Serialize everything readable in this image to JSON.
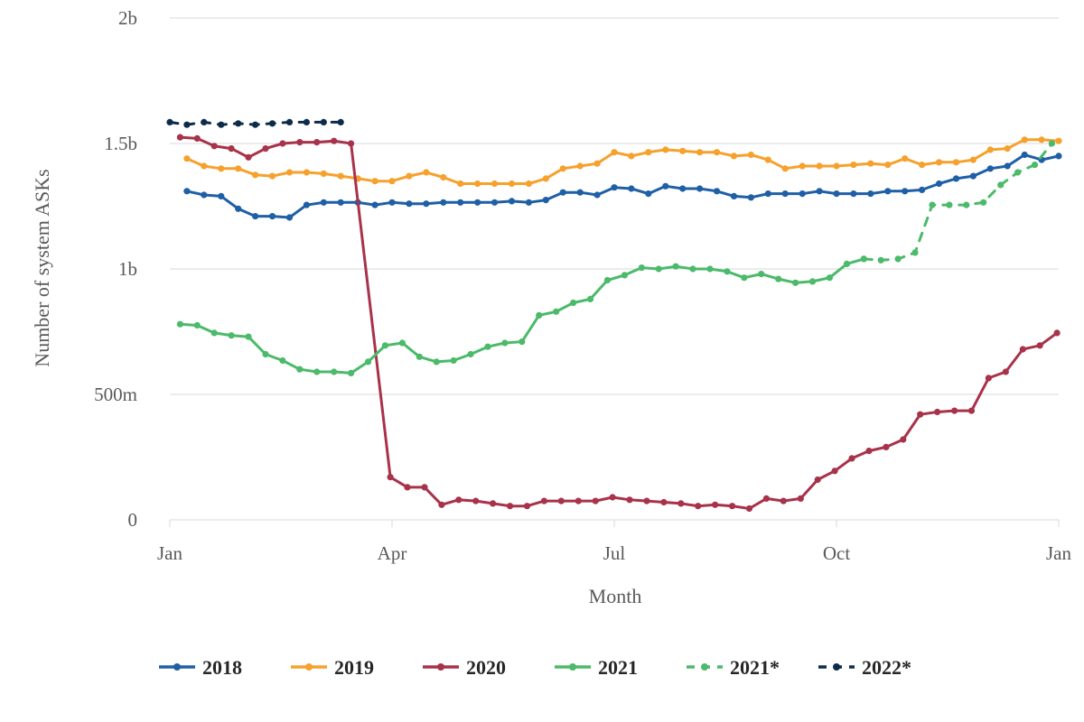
{
  "chart_data": {
    "type": "line",
    "xlabel": "Month",
    "ylabel": "Number of system ASKs",
    "ylim": [
      0,
      2000000000
    ],
    "xlim": [
      0,
      52
    ],
    "grid": "horizontal",
    "legend_position": "bottom",
    "y_ticks": [
      {
        "value": 0,
        "label": "0"
      },
      {
        "value": 500000000,
        "label": "500m"
      },
      {
        "value": 1000000000,
        "label": "1b"
      },
      {
        "value": 1500000000,
        "label": "1.5b"
      },
      {
        "value": 2000000000,
        "label": "2b"
      }
    ],
    "x_ticks": [
      {
        "value": 0,
        "label": "Jan"
      },
      {
        "value": 13,
        "label": "Apr"
      },
      {
        "value": 26,
        "label": "Jul"
      },
      {
        "value": 39,
        "label": "Oct"
      },
      {
        "value": 52,
        "label": "Jan"
      }
    ],
    "series": [
      {
        "name": "2018",
        "color": "#1f5fa6",
        "dashed": false,
        "points": [
          [
            1,
            1310
          ],
          [
            2,
            1295
          ],
          [
            3,
            1290
          ],
          [
            4,
            1240
          ],
          [
            5,
            1210
          ],
          [
            6,
            1210
          ],
          [
            7,
            1205
          ],
          [
            8,
            1255
          ],
          [
            9,
            1265
          ],
          [
            10,
            1265
          ],
          [
            11,
            1265
          ],
          [
            12,
            1255
          ],
          [
            13,
            1265
          ],
          [
            14,
            1260
          ],
          [
            15,
            1260
          ],
          [
            16,
            1265
          ],
          [
            17,
            1265
          ],
          [
            18,
            1265
          ],
          [
            19,
            1265
          ],
          [
            20,
            1270
          ],
          [
            21,
            1265
          ],
          [
            22,
            1275
          ],
          [
            23,
            1305
          ],
          [
            24,
            1305
          ],
          [
            25,
            1295
          ],
          [
            26,
            1325
          ],
          [
            27,
            1320
          ],
          [
            28,
            1300
          ],
          [
            29,
            1330
          ],
          [
            30,
            1320
          ],
          [
            31,
            1320
          ],
          [
            32,
            1310
          ],
          [
            33,
            1290
          ],
          [
            34,
            1285
          ],
          [
            35,
            1300
          ],
          [
            36,
            1300
          ],
          [
            37,
            1300
          ],
          [
            38,
            1310
          ],
          [
            39,
            1300
          ],
          [
            40,
            1300
          ],
          [
            41,
            1300
          ],
          [
            42,
            1310
          ],
          [
            43,
            1310
          ],
          [
            44,
            1315
          ],
          [
            45,
            1340
          ],
          [
            46,
            1360
          ],
          [
            47,
            1370
          ],
          [
            48,
            1400
          ],
          [
            49,
            1410
          ],
          [
            50,
            1455
          ],
          [
            51,
            1435
          ],
          [
            52,
            1450
          ]
        ]
      },
      {
        "name": "2019",
        "color": "#f6a12d",
        "dashed": false,
        "points": [
          [
            1,
            1440
          ],
          [
            2,
            1410
          ],
          [
            3,
            1400
          ],
          [
            4,
            1400
          ],
          [
            5,
            1375
          ],
          [
            6,
            1370
          ],
          [
            7,
            1385
          ],
          [
            8,
            1385
          ],
          [
            9,
            1380
          ],
          [
            10,
            1370
          ],
          [
            11,
            1360
          ],
          [
            12,
            1350
          ],
          [
            13,
            1350
          ],
          [
            14,
            1370
          ],
          [
            15,
            1385
          ],
          [
            16,
            1365
          ],
          [
            17,
            1340
          ],
          [
            18,
            1340
          ],
          [
            19,
            1340
          ],
          [
            20,
            1340
          ],
          [
            21,
            1340
          ],
          [
            22,
            1360
          ],
          [
            23,
            1400
          ],
          [
            24,
            1410
          ],
          [
            25,
            1420
          ],
          [
            26,
            1465
          ],
          [
            27,
            1450
          ],
          [
            28,
            1465
          ],
          [
            29,
            1475
          ],
          [
            30,
            1470
          ],
          [
            31,
            1465
          ],
          [
            32,
            1465
          ],
          [
            33,
            1450
          ],
          [
            34,
            1455
          ],
          [
            35,
            1435
          ],
          [
            36,
            1400
          ],
          [
            37,
            1410
          ],
          [
            38,
            1410
          ],
          [
            39,
            1410
          ],
          [
            40,
            1415
          ],
          [
            41,
            1420
          ],
          [
            42,
            1415
          ],
          [
            43,
            1440
          ],
          [
            44,
            1415
          ],
          [
            45,
            1425
          ],
          [
            46,
            1425
          ],
          [
            47,
            1435
          ],
          [
            48,
            1475
          ],
          [
            49,
            1480
          ],
          [
            50,
            1515
          ],
          [
            51,
            1515
          ],
          [
            52,
            1510
          ]
        ]
      },
      {
        "name": "2020",
        "color": "#a8324a",
        "dashed": false,
        "points": [
          [
            0.6,
            1525
          ],
          [
            1.6,
            1520
          ],
          [
            2.6,
            1490
          ],
          [
            3.6,
            1480
          ],
          [
            4.6,
            1445
          ],
          [
            5.6,
            1480
          ],
          [
            6.6,
            1500
          ],
          [
            7.6,
            1505
          ],
          [
            8.6,
            1505
          ],
          [
            9.6,
            1510
          ],
          [
            10.6,
            1500
          ],
          [
            12.9,
            170
          ],
          [
            13.9,
            130
          ],
          [
            14.9,
            130
          ],
          [
            15.9,
            60
          ],
          [
            16.9,
            80
          ],
          [
            17.9,
            75
          ],
          [
            18.9,
            65
          ],
          [
            19.9,
            55
          ],
          [
            20.9,
            55
          ],
          [
            21.9,
            75
          ],
          [
            22.9,
            75
          ],
          [
            23.9,
            75
          ],
          [
            24.9,
            75
          ],
          [
            25.9,
            90
          ],
          [
            26.9,
            80
          ],
          [
            27.9,
            75
          ],
          [
            28.9,
            70
          ],
          [
            29.9,
            65
          ],
          [
            30.9,
            55
          ],
          [
            31.9,
            60
          ],
          [
            32.9,
            55
          ],
          [
            33.9,
            45
          ],
          [
            34.9,
            85
          ],
          [
            35.9,
            75
          ],
          [
            36.9,
            85
          ],
          [
            37.9,
            160
          ],
          [
            38.9,
            195
          ],
          [
            39.9,
            245
          ],
          [
            40.9,
            275
          ],
          [
            41.9,
            290
          ],
          [
            42.9,
            320
          ],
          [
            43.9,
            420
          ],
          [
            44.9,
            430
          ],
          [
            45.9,
            435
          ],
          [
            46.9,
            435
          ],
          [
            47.9,
            565
          ],
          [
            48.9,
            590
          ],
          [
            49.9,
            680
          ],
          [
            50.9,
            695
          ],
          [
            51.9,
            745
          ]
        ]
      },
      {
        "name": "2021",
        "color": "#4bba6a",
        "dashed": false,
        "points": [
          [
            0.6,
            780
          ],
          [
            1.6,
            775
          ],
          [
            2.6,
            745
          ],
          [
            3.6,
            735
          ],
          [
            4.6,
            730
          ],
          [
            5.6,
            660
          ],
          [
            6.6,
            635
          ],
          [
            7.6,
            600
          ],
          [
            8.6,
            590
          ],
          [
            9.6,
            590
          ],
          [
            10.6,
            585
          ],
          [
            11.6,
            630
          ],
          [
            12.6,
            695
          ],
          [
            13.6,
            705
          ],
          [
            14.6,
            650
          ],
          [
            15.6,
            630
          ],
          [
            16.6,
            635
          ],
          [
            17.6,
            660
          ],
          [
            18.6,
            690
          ],
          [
            19.6,
            705
          ],
          [
            20.6,
            710
          ],
          [
            21.6,
            815
          ],
          [
            22.6,
            830
          ],
          [
            23.6,
            865
          ],
          [
            24.6,
            880
          ],
          [
            25.6,
            955
          ],
          [
            26.6,
            975
          ],
          [
            27.6,
            1005
          ],
          [
            28.6,
            1000
          ],
          [
            29.6,
            1010
          ],
          [
            30.6,
            1000
          ],
          [
            31.6,
            1000
          ],
          [
            32.6,
            990
          ],
          [
            33.6,
            965
          ],
          [
            34.6,
            980
          ],
          [
            35.6,
            960
          ],
          [
            36.6,
            945
          ],
          [
            37.6,
            950
          ],
          [
            38.6,
            965
          ],
          [
            39.6,
            1020
          ],
          [
            40.6,
            1040
          ]
        ]
      },
      {
        "name": "2021*",
        "color": "#4bba6a",
        "dashed": true,
        "points": [
          [
            40.6,
            1040
          ],
          [
            41.6,
            1035
          ],
          [
            42.6,
            1040
          ],
          [
            43.6,
            1065
          ],
          [
            44.6,
            1255
          ],
          [
            45.6,
            1255
          ],
          [
            46.6,
            1255
          ],
          [
            47.6,
            1265
          ],
          [
            48.6,
            1335
          ],
          [
            49.6,
            1385
          ],
          [
            50.6,
            1415
          ],
          [
            51.6,
            1500
          ]
        ]
      },
      {
        "name": "2022*",
        "color": "#0d2c4c",
        "dashed": true,
        "points": [
          [
            0,
            1585
          ],
          [
            1,
            1575
          ],
          [
            2,
            1585
          ],
          [
            3,
            1575
          ],
          [
            4,
            1580
          ],
          [
            5,
            1575
          ],
          [
            6,
            1580
          ],
          [
            7,
            1585
          ],
          [
            8,
            1585
          ],
          [
            9,
            1585
          ],
          [
            10,
            1585
          ]
        ]
      }
    ]
  }
}
